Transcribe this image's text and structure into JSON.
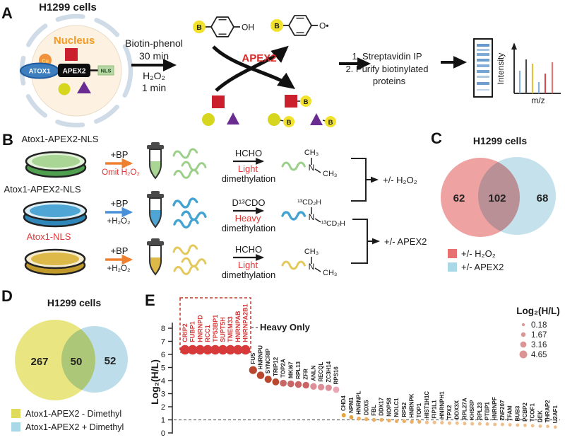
{
  "figure": {
    "panel_a": {
      "label": "A",
      "title": "H1299 cells",
      "biotin": "B",
      "cell": {
        "nucleus": "Nucleus",
        "nucleus_color": "#f59a23",
        "cu": "Cu",
        "atox1": "ATOX1",
        "apex2": "APEX2",
        "nls": "NLS"
      },
      "reaction": {
        "reagent": "Biotin-phenol",
        "time1": "30 min",
        "oxidant": "H₂O₂",
        "time2": "1 min"
      },
      "substrate_group": "OH",
      "radical_group": "O•",
      "enzyme": "APEX2",
      "enzyme_color": "#d62828",
      "steps": [
        "1. Streptavidin IP",
        "2. Purify biotinylated",
        "proteins"
      ],
      "ms": {
        "ylabel": "Intensity",
        "xlabel": "m/z"
      }
    },
    "panel_b": {
      "label": "B",
      "rows": [
        {
          "sample": "Atox1-APEX2-NLS",
          "sample_color": "#1a1a1a",
          "plus": "+BP",
          "condition": "Omit H₂O₂",
          "condition_color": "#e03535",
          "arrow_color": "#ee8030",
          "dish": {
            "wall": "#4ea04e",
            "rim": "#e4f2dc",
            "media": "#a9d694"
          },
          "tube_fill": "#a9d694",
          "squiggle_color": "#9ccf8a",
          "reagent": "HCHO",
          "mode": "Light",
          "mode_color": "#e03535",
          "step": "dimethylation"
        },
        {
          "sample": "Atox1-APEX2-NLS",
          "sample_color": "#1a1a1a",
          "plus": "+BP",
          "condition": "+H₂O₂",
          "condition_color": "#1a1a1a",
          "arrow_color": "#4a90d9",
          "dish": {
            "wall": "#2f86b8",
            "rim": "#dceef8",
            "media": "#4fa6d4"
          },
          "tube_fill": "#4fa6d4",
          "squiggle_color": "#45a3d2",
          "reagent": "D¹³CDO",
          "mode": "Heavy",
          "mode_color": "#e03535",
          "step": "dimethylation"
        },
        {
          "sample": "Atox1-NLS",
          "sample_color": "#e03535",
          "plus": "+BP",
          "condition": "+H₂O₂",
          "condition_color": "#1a1a1a",
          "arrow_color": "#ee8030",
          "dish": {
            "wall": "#c0992a",
            "rim": "#f6eccd",
            "media": "#ddb94a"
          },
          "tube_fill": "#ddb94a",
          "squiggle_color": "#e3c95c",
          "reagent": "HCHO",
          "mode": "Light",
          "mode_color": "#e03535",
          "step": "dimethylation"
        }
      ],
      "structures": [
        {
          "n": "N",
          "top": "CH₃",
          "side": "CH₃",
          "color": "#9ccf8a"
        },
        {
          "n": "N",
          "top": "¹³CD₂H",
          "side": "¹³CD₂H",
          "color": "#45a3d2"
        },
        {
          "n": "N",
          "top": "CH₃",
          "side": "CH₃",
          "color": "#e3c95c"
        }
      ],
      "comparisons": [
        "+/- H₂O₂",
        "+/- APEX2"
      ]
    },
    "panel_c": {
      "label": "C",
      "title": "H1299 cells",
      "left_count": "62",
      "overlap_count": "102",
      "right_count": "68",
      "left_color": "#efa2a2",
      "right_color": "#c5e2ec",
      "legend": [
        {
          "label": "+/- H₂O₂",
          "color": "#e87070"
        },
        {
          "label": "+/- APEX2",
          "color": "#a9d8e6"
        }
      ]
    },
    "panel_d": {
      "label": "D",
      "title": "H1299 cells",
      "left_count": "267",
      "overlap_count": "50",
      "right_count": "52",
      "left_color": "#e9e682",
      "right_color": "#bcdde9",
      "legend": [
        {
          "label": "Atox1-APEX2 - Dimethyl",
          "color": "#dedc5a"
        },
        {
          "label": "Atox1-APEX2 + Dimethyl",
          "color": "#a9d8e6"
        }
      ]
    },
    "panel_e": {
      "label": "E"
    }
  },
  "chart_data": {
    "type": "scatter",
    "title": "",
    "xlabel": "",
    "ylabel": "Log₂(H/L)",
    "ylim": [
      0,
      8
    ],
    "yticks": [
      0,
      1,
      2,
      3,
      4,
      5,
      6,
      7,
      8
    ],
    "threshold": 1,
    "grid": false,
    "heavy_only_label": "Heavy Only",
    "heavy_only_value": 6.35,
    "heavy_only_proteins": [
      "CRIP2",
      "FUBP1",
      "HNRNPD",
      "RCC1",
      "TP53BP1",
      "SUPT5H",
      "TMEM33",
      "HNRNPAB",
      "HNRNPA2B1"
    ],
    "points": [
      {
        "name": "FUS",
        "value": 4.8
      },
      {
        "name": "HNRNPU",
        "value": 4.4
      },
      {
        "name": "SYNCRIP",
        "value": 4.1
      },
      {
        "name": "TRIP12",
        "value": 3.9
      },
      {
        "name": "TOP2A",
        "value": 3.8
      },
      {
        "name": "MKI67",
        "value": 3.75
      },
      {
        "name": "RPL13",
        "value": 3.7
      },
      {
        "name": "ZFR",
        "value": 3.65
      },
      {
        "name": "ANLN",
        "value": 3.55
      },
      {
        "name": "RECQL",
        "value": 3.5
      },
      {
        "name": "ZC3H14",
        "value": 3.45
      },
      {
        "name": "RPS16",
        "value": 3.3
      },
      {
        "name": "CHD4",
        "value": 1.35
      },
      {
        "name": "NPM1",
        "value": 1.2
      },
      {
        "name": "HNRNPL",
        "value": 1.1
      },
      {
        "name": "DDX5",
        "value": 1.05
      },
      {
        "name": "FBL",
        "value": 1.0
      },
      {
        "name": "DDX17",
        "value": 1.0
      },
      {
        "name": "NOP58",
        "value": 0.95
      },
      {
        "name": "NOLC1",
        "value": 0.9
      },
      {
        "name": "RPS2",
        "value": 0.9
      },
      {
        "name": "HNRNPK",
        "value": 0.85
      },
      {
        "name": "TOP1",
        "value": 0.85
      },
      {
        "name": "HIST1H1C",
        "value": 0.8
      },
      {
        "name": "FIP1L1",
        "value": 0.8
      },
      {
        "name": "HNRNPH1",
        "value": 0.78
      },
      {
        "name": "TPX2",
        "value": 0.75
      },
      {
        "name": "DDX3X",
        "value": 0.75
      },
      {
        "name": "RPL27A",
        "value": 0.72
      },
      {
        "name": "KHSRP",
        "value": 0.7
      },
      {
        "name": "RPL23",
        "value": 0.7
      },
      {
        "name": "PTBP1",
        "value": 0.68
      },
      {
        "name": "HNRNPF",
        "value": 0.65
      },
      {
        "name": "ZNF207",
        "value": 0.65
      },
      {
        "name": "TFAM",
        "value": 0.62
      },
      {
        "name": "BUB3",
        "value": 0.6
      },
      {
        "name": "PCBP2",
        "value": 0.58
      },
      {
        "name": "TCOF1",
        "value": 0.55
      },
      {
        "name": "DEK",
        "value": 0.52
      },
      {
        "name": "THRAP2",
        "value": 0.5
      },
      {
        "name": "U2AF1",
        "value": 0.45
      }
    ],
    "legend": {
      "title": "Log₂(H/L)",
      "position": "right",
      "sizes": [
        "0.18",
        "1.67",
        "3.16",
        "4.65"
      ],
      "dot_color": "#dd9494"
    },
    "color_scale": [
      {
        "min": 6,
        "color": "#d63a3a"
      },
      {
        "min": 3.85,
        "color": "#b8472e"
      },
      {
        "min": 3.6,
        "color": "#c96565"
      },
      {
        "min": 3.4,
        "color": "#dd8f98"
      },
      {
        "min": 3.0,
        "color": "#e8a7b4"
      },
      {
        "min": 1.15,
        "color": "#e4a23e"
      },
      {
        "min": 0.85,
        "color": "#ebaf62"
      },
      {
        "min": 0,
        "color": "#efbf8d"
      }
    ],
    "box_color": "#c0392b"
  }
}
